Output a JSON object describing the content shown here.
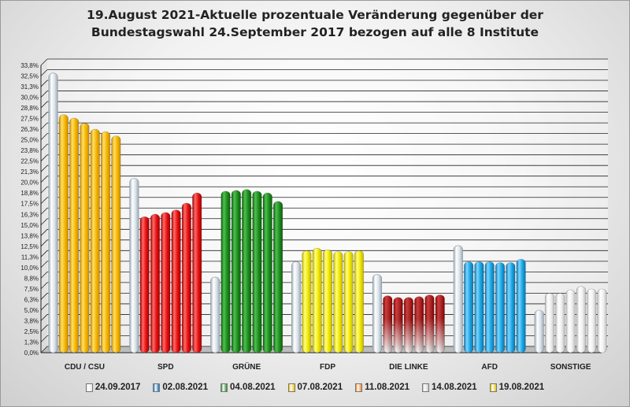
{
  "title": {
    "line1": "19.August 2021-Aktuelle prozentuale Veränderung gegenüber der",
    "line2": "Bundestagswahl 24.September 2017 bezogen auf alle 8 Institute"
  },
  "chart_data": {
    "type": "bar",
    "title": "19.August 2021-Aktuelle prozentuale Veränderung gegenüber der Bundestagswahl 24.September 2017 bezogen auf alle 8 Institute",
    "categories": [
      "CDU / CSU",
      "SPD",
      "GRÜNE",
      "FDP",
      "DIE LINKE",
      "AFD",
      "SONSTIGE"
    ],
    "series": [
      {
        "name": "24.09.2017",
        "values": [
          32.9,
          20.5,
          8.9,
          10.7,
          9.2,
          12.6,
          5.0
        ]
      },
      {
        "name": "02.08.2021",
        "values": [
          28.0,
          16.0,
          19.0,
          12.0,
          6.7,
          10.7,
          7.0
        ]
      },
      {
        "name": "04.08.2021",
        "values": [
          27.6,
          16.3,
          19.1,
          12.3,
          6.5,
          10.7,
          7.0
        ]
      },
      {
        "name": "07.08.2021",
        "values": [
          27.0,
          16.5,
          19.2,
          12.1,
          6.5,
          10.7,
          7.4
        ]
      },
      {
        "name": "11.08.2021",
        "values": [
          26.3,
          16.8,
          19.0,
          11.9,
          6.6,
          10.6,
          7.8
        ]
      },
      {
        "name": "14.08.2021",
        "values": [
          26.0,
          17.6,
          18.8,
          11.9,
          6.8,
          10.6,
          7.5
        ]
      },
      {
        "name": "19.08.2021",
        "values": [
          25.5,
          18.8,
          17.8,
          12.0,
          6.8,
          11.0,
          7.5
        ]
      }
    ],
    "ylim": [
      0,
      33.8
    ],
    "yticks": [
      "0,0%",
      "1,3%",
      "2,5%",
      "3,8%",
      "5,0%",
      "6,3%",
      "7,5%",
      "8,8%",
      "10,0%",
      "11,3%",
      "12,5%",
      "13,8%",
      "15,0%",
      "16,3%",
      "17,5%",
      "18,8%",
      "20,0%",
      "21,3%",
      "22,5%",
      "23,8%",
      "25,0%",
      "26,3%",
      "27,5%",
      "28,8%",
      "30,0%",
      "31,3%",
      "32,5%",
      "33,8%"
    ],
    "grid": true,
    "legend_position": "bottom",
    "colors": {
      "reference": "#dfe7ee",
      "CDU / CSU": "#f5b800",
      "SPD": "#e81010",
      "GRÜNE": "#1f8f1f",
      "FDP": "#f2e600",
      "DIE LINKE": "#c00000",
      "AFD": "#1aa7e6",
      "SONSTIGE": "#f4f4f4"
    }
  },
  "legend": {
    "items": [
      {
        "label": "24.09.2017",
        "color": "#e4e9ee"
      },
      {
        "label": "02.08.2021",
        "color": "#1f6fb5"
      },
      {
        "label": "04.08.2021",
        "color": "#2e8b2e"
      },
      {
        "label": "07.08.2021",
        "color": "#f2c000"
      },
      {
        "label": "11.08.2021",
        "color": "#ef8a2a"
      },
      {
        "label": "14.08.2021",
        "color": "#c8c8c8"
      },
      {
        "label": "19.08.2021",
        "color": "#e8c000"
      }
    ]
  }
}
